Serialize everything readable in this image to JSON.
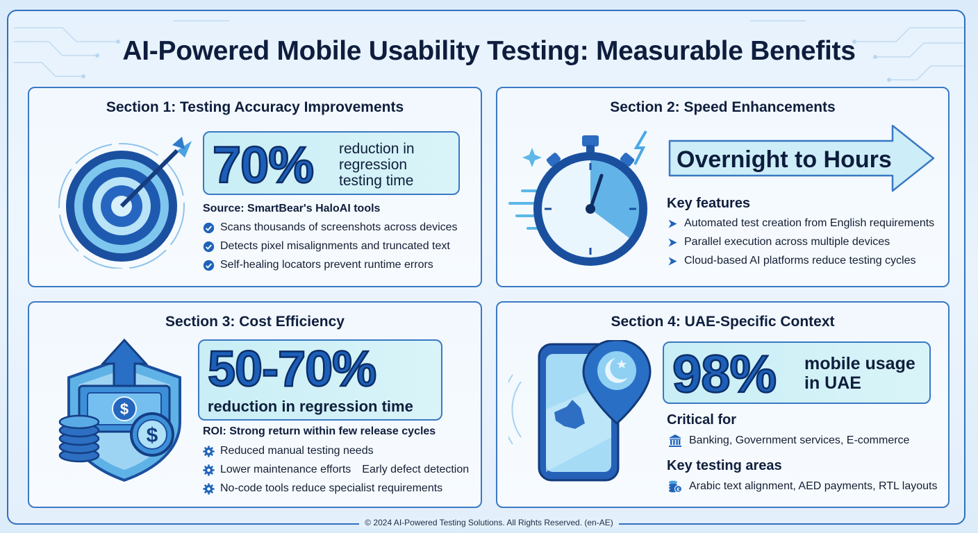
{
  "title": "AI-Powered Mobile Usability Testing: Measurable Benefits",
  "footer": "© 2024 AI-Powered Testing Solutions. All Rights Reserved. (en-AE)",
  "colors": {
    "accent": "#1c5fb8",
    "border": "#3b79c4",
    "stat_bg": "#d2f1f7",
    "text": "#0f1e3c"
  },
  "section1": {
    "title": "Section 1: Testing Accuracy Improvements",
    "stat_value": "70%",
    "stat_desc_lines": [
      "reduction in",
      "regression",
      "testing time"
    ],
    "source": "Source: SmartBear's HaloAI tools",
    "icon": "target-arrow-icon",
    "items": [
      "Scans thousands of screenshots across devices",
      "Detects pixel misalignments and truncated text",
      "Self-healing locators prevent runtime errors"
    ],
    "item_icon": "check-circle-icon"
  },
  "section2": {
    "title": "Section 2: Speed Enhancements",
    "banner": "Overnight to Hours",
    "icon": "stopwatch-icon",
    "features_heading": "Key features",
    "items": [
      "Automated test creation from English requirements",
      "Parallel execution across multiple devices",
      "Cloud-based AI platforms reduce testing cycles"
    ],
    "item_icon": "chevron-right-icon"
  },
  "section3": {
    "title": "Section 3: Cost Efficiency",
    "stat_value": "50-70%",
    "stat_desc": "reduction in regression time",
    "icon": "money-shield-icon",
    "roi": "ROI: Strong return within few release cycles",
    "items": [
      "Reduced manual testing needs",
      "Lower maintenance efforts",
      "Early defect detection",
      "No-code tools reduce specialist requirements"
    ],
    "item_icon": "gear-icon"
  },
  "section4": {
    "title": "Section 4: UAE-Specific Context",
    "stat_value": "98%",
    "stat_desc_lines": [
      "mobile usage",
      "in UAE"
    ],
    "icon": "phone-location-icon",
    "critical_heading": "Critical for",
    "critical_item": "Banking, Government services, E-commerce",
    "critical_icon": "bank-icon",
    "areas_heading": "Key testing areas",
    "areas_item": "Arabic text alignment, AED payments, RTL layouts",
    "areas_icon": "coins-icon"
  }
}
